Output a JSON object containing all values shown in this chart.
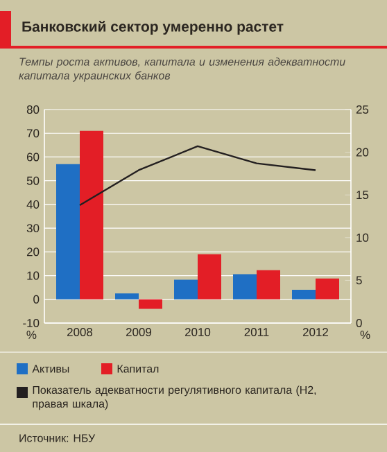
{
  "chart_data": {
    "type": "bar",
    "title": "Банковский сектор умеренно растет",
    "subtitle": "Темпы роста активов, капитала и изменения адекватности капитала украинских банков",
    "categories": [
      "2008",
      "2009",
      "2010",
      "2011",
      "2012"
    ],
    "series": [
      {
        "name": "Активы",
        "color": "#1f6fc4",
        "values": [
          57,
          2.5,
          8.3,
          10.6,
          4
        ]
      },
      {
        "name": "Капитал",
        "color": "#e31e26",
        "values": [
          71,
          -4,
          19,
          12.3,
          8.8
        ]
      },
      {
        "name": "Показатель адекватности регулятивного капитала (Н2, правая шкала)",
        "type": "line",
        "axis": "y2",
        "color": "#231f20",
        "values": [
          13.8,
          17.9,
          20.7,
          18.7,
          17.9
        ]
      }
    ],
    "ylabel": "%",
    "y2label": "%",
    "ylim": [
      -10,
      80
    ],
    "yticks": [
      -10,
      0,
      10,
      20,
      30,
      40,
      50,
      60,
      70,
      80
    ],
    "y2lim": [
      0,
      25
    ],
    "y2ticks": [
      0,
      5,
      10,
      15,
      20,
      25
    ],
    "grid": "y",
    "legend": "bottom",
    "marker": "none",
    "line_style": "solid",
    "annotations": [
      "Источник: НБУ"
    ]
  }
}
